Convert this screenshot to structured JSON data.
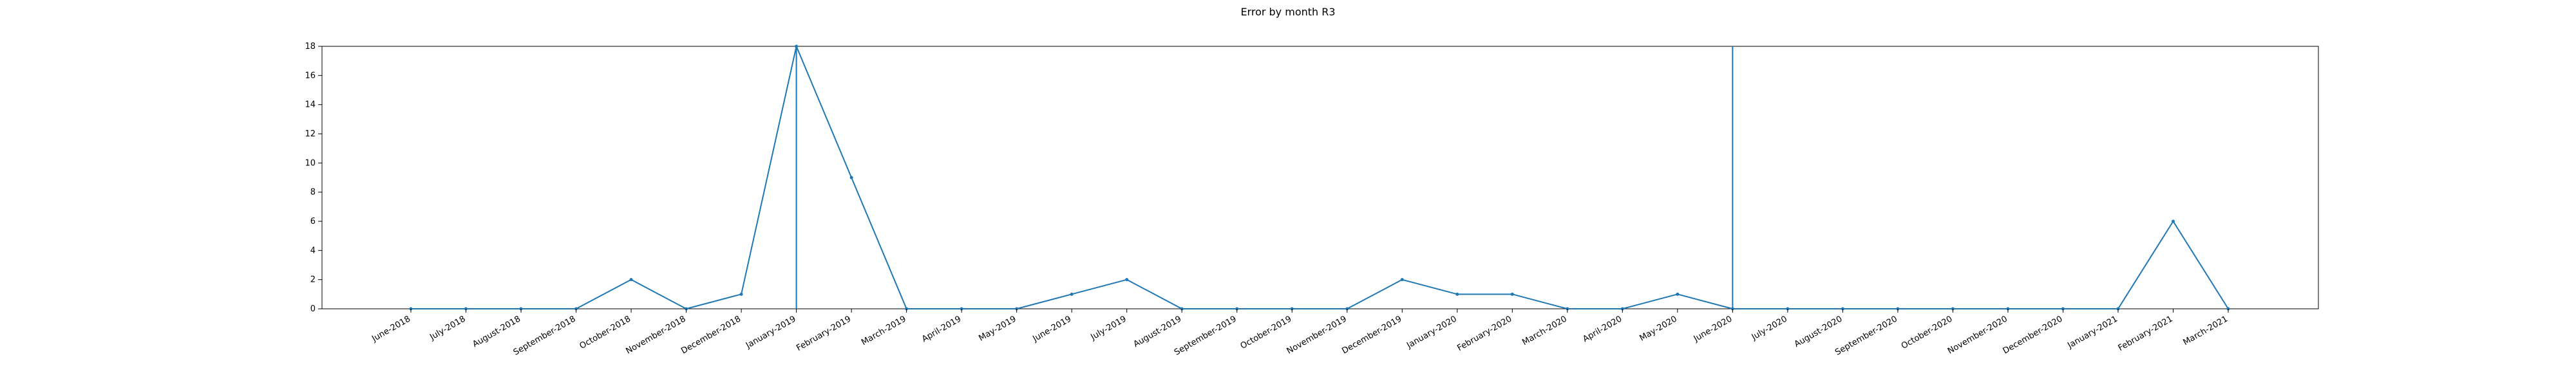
{
  "chart_data": {
    "type": "line",
    "title": "Error by month R3",
    "xlabel": "",
    "ylabel": "",
    "categories": [
      "June-2018",
      "July-2018",
      "August-2018",
      "September-2018",
      "October-2018",
      "November-2018",
      "December-2018",
      "January-2019",
      "February-2019",
      "March-2019",
      "April-2019",
      "May-2019",
      "June-2019",
      "July-2019",
      "August-2019",
      "September-2019",
      "October-2019",
      "November-2019",
      "December-2019",
      "January-2020",
      "February-2020",
      "March-2020",
      "April-2020",
      "May-2020",
      "June-2020",
      "July-2020",
      "August-2020",
      "September-2020",
      "October-2020",
      "November-2020",
      "December-2020",
      "January-2021",
      "February-2021",
      "March-2021"
    ],
    "series": [
      {
        "values": [
          0,
          0,
          0,
          0,
          2,
          0,
          1,
          18,
          9,
          0,
          0,
          0,
          1,
          2,
          0,
          0,
          0,
          0,
          2,
          1,
          1,
          0,
          0,
          1,
          0,
          0,
          0,
          0,
          0,
          0,
          0,
          0,
          6,
          0
        ]
      }
    ],
    "vertical_lines": [
      "January-2019",
      "June-2020"
    ],
    "ylim": [
      0,
      18
    ],
    "yticks": [
      0,
      2,
      4,
      6,
      8,
      10,
      12,
      14,
      16,
      18
    ],
    "grid": false,
    "legend": "none",
    "colors": {
      "line": "#1f77b4",
      "axes": "#000000"
    }
  }
}
